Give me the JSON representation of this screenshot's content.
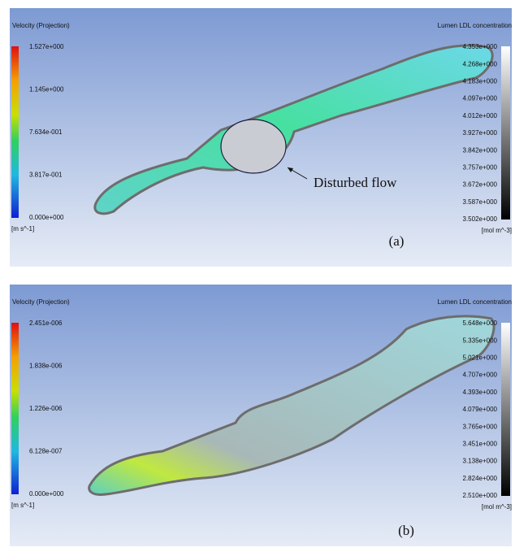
{
  "panels": [
    {
      "velocity_title": "Velocity (Projection)",
      "velocity_labels": [
        "1.527e+000",
        "1.145e+000",
        "7.634e-001",
        "3.817e-001",
        "0.000e+000"
      ],
      "velocity_unit": "[m s^-1]",
      "ldl_title": "Lumen LDL concentration",
      "ldl_labels": [
        "4.353e+000",
        "4.268e+000",
        "4.183e+000",
        "4.097e+000",
        "4.012e+000",
        "3.927e+000",
        "3.842e+000",
        "3.757e+000",
        "3.672e+000",
        "3.587e+000",
        "3.502e+000"
      ],
      "ldl_unit": "[mol m^-3]",
      "annotation": "Disturbed flow",
      "label": "(a)"
    },
    {
      "velocity_title": "Velocity (Projection)",
      "velocity_labels": [
        "2.451e-006",
        "1.838e-006",
        "1.226e-006",
        "6.128e-007",
        "0.000e+000"
      ],
      "velocity_unit": "[m s^-1]",
      "ldl_title": "Lumen LDL concentration",
      "ldl_labels": [
        "5.648e+000",
        "5.335e+000",
        "5.021e+000",
        "4.707e+000",
        "4.393e+000",
        "4.079e+000",
        "3.765e+000",
        "3.451e+000",
        "3.138e+000",
        "2.824e+000",
        "2.510e+000"
      ],
      "ldl_unit": "[mol m^-3]",
      "label": "(b)"
    }
  ]
}
